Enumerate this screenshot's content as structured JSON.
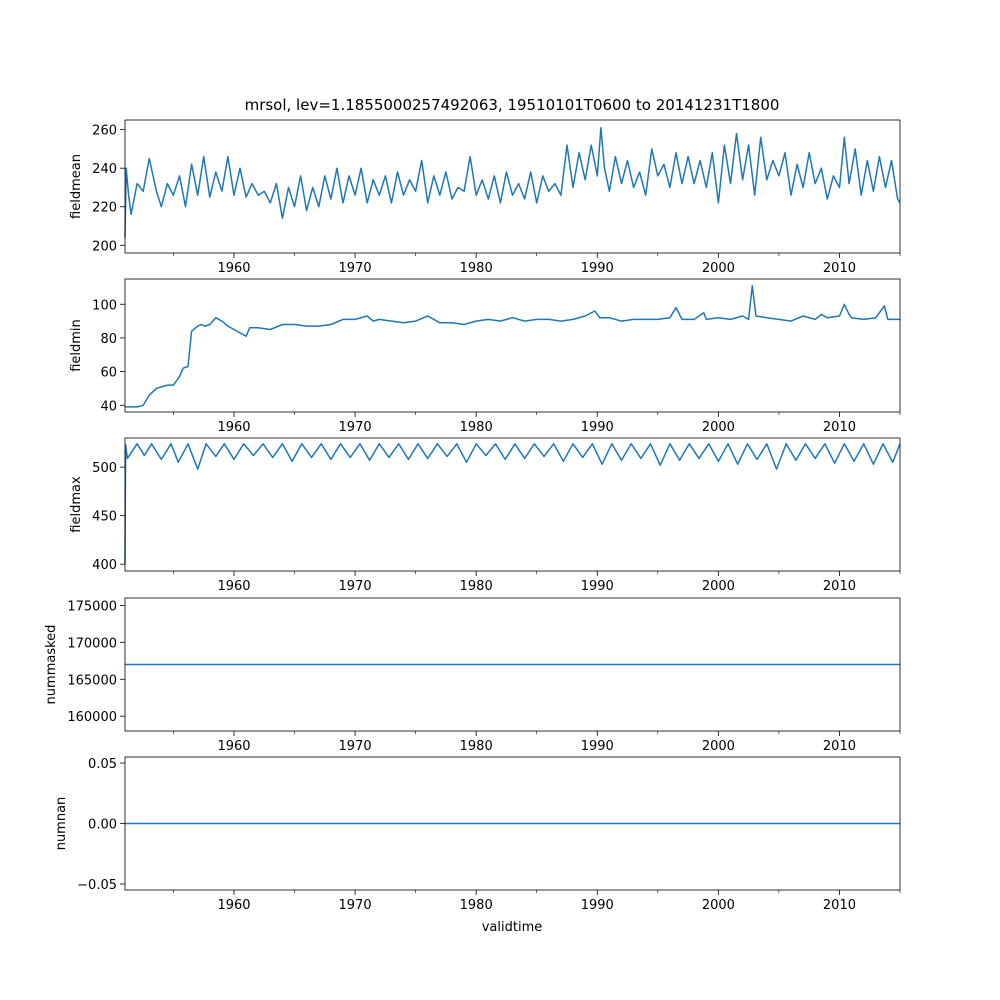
{
  "figure": {
    "title": "mrsol, lev=1.1855000257492063, 19510101T0600 to 20141231T1800",
    "xlabel": "validtime"
  },
  "colors": {
    "line": "#1f77b4",
    "axis": "#000000"
  },
  "chart_data": [
    {
      "type": "line",
      "ylabel": "fieldmean",
      "xlim": [
        1951.0,
        2015.0
      ],
      "ylim": [
        196,
        265
      ],
      "xticks": [
        1960,
        1970,
        1980,
        1990,
        2000,
        2010
      ],
      "yticks": [
        200,
        220,
        240,
        260
      ],
      "grid": false,
      "series": [
        {
          "x": [
            1951.0,
            1951.1,
            1951.3,
            1951.5,
            1952.0,
            1952.5,
            1953.0,
            1953.6,
            1954.0,
            1954.5,
            1955.0,
            1955.5,
            1956.0,
            1956.5,
            1957.0,
            1957.5,
            1958.0,
            1958.5,
            1959.0,
            1959.5,
            1960.0,
            1960.5,
            1961.0,
            1961.5,
            1962.0,
            1962.5,
            1963.0,
            1963.5,
            1964.0,
            1964.5,
            1965.0,
            1965.5,
            1966.0,
            1966.5,
            1967.0,
            1967.5,
            1968.0,
            1968.5,
            1969.0,
            1969.5,
            1970.0,
            1970.5,
            1971.0,
            1971.5,
            1972.0,
            1972.5,
            1973.0,
            1973.5,
            1974.0,
            1974.5,
            1975.0,
            1975.5,
            1976.0,
            1976.5,
            1977.0,
            1977.5,
            1978.0,
            1978.5,
            1979.0,
            1979.5,
            1980.0,
            1980.5,
            1981.0,
            1981.5,
            1982.0,
            1982.5,
            1983.0,
            1983.5,
            1984.0,
            1984.5,
            1985.0,
            1985.5,
            1986.0,
            1986.5,
            1987.0,
            1987.5,
            1988.0,
            1988.5,
            1989.0,
            1989.5,
            1990.0,
            1990.3,
            1990.6,
            1991.0,
            1991.5,
            1992.0,
            1992.5,
            1993.0,
            1993.5,
            1994.0,
            1994.5,
            1995.0,
            1995.5,
            1996.0,
            1996.5,
            1997.0,
            1997.5,
            1998.0,
            1998.5,
            1999.0,
            1999.5,
            2000.0,
            2000.5,
            2001.0,
            2001.5,
            2002.0,
            2002.5,
            2003.0,
            2003.5,
            2004.0,
            2004.5,
            2005.0,
            2005.5,
            2006.0,
            2006.5,
            2007.0,
            2007.5,
            2008.0,
            2008.5,
            2009.0,
            2009.5,
            2010.0,
            2010.4,
            2010.8,
            2011.3,
            2011.8,
            2012.3,
            2012.8,
            2013.3,
            2013.8,
            2014.3,
            2014.8,
            2015.0
          ],
          "y": [
            204,
            240,
            226,
            216,
            232,
            228,
            245,
            228,
            220,
            232,
            226,
            236,
            220,
            242,
            226,
            246,
            225,
            238,
            228,
            246,
            226,
            240,
            225,
            232,
            226,
            228,
            222,
            232,
            214,
            230,
            220,
            236,
            218,
            230,
            220,
            236,
            224,
            240,
            222,
            236,
            226,
            240,
            222,
            234,
            226,
            236,
            222,
            238,
            226,
            234,
            228,
            244,
            222,
            236,
            226,
            238,
            224,
            230,
            228,
            246,
            226,
            234,
            224,
            236,
            222,
            238,
            226,
            232,
            224,
            238,
            222,
            236,
            228,
            232,
            226,
            252,
            230,
            248,
            234,
            252,
            236,
            261,
            240,
            228,
            246,
            232,
            244,
            230,
            238,
            226,
            250,
            236,
            242,
            230,
            248,
            232,
            246,
            232,
            244,
            230,
            248,
            222,
            252,
            232,
            258,
            234,
            252,
            226,
            256,
            234,
            244,
            236,
            248,
            226,
            242,
            230,
            248,
            232,
            240,
            224,
            236,
            230,
            256,
            232,
            250,
            226,
            244,
            228,
            246,
            230,
            244,
            224,
            222
          ]
        }
      ]
    },
    {
      "type": "line",
      "ylabel": "fieldmin",
      "xlim": [
        1951.0,
        2015.0
      ],
      "ylim": [
        36,
        115
      ],
      "xticks": [
        1960,
        1970,
        1980,
        1990,
        2000,
        2010
      ],
      "yticks": [
        40,
        60,
        80,
        100
      ],
      "grid": false,
      "series": [
        {
          "x": [
            1951.0,
            1952.0,
            1952.5,
            1953.0,
            1953.6,
            1954.5,
            1955.0,
            1955.5,
            1955.8,
            1956.2,
            1956.5,
            1957.0,
            1957.3,
            1957.6,
            1958.0,
            1958.5,
            1959.0,
            1959.5,
            1960.0,
            1960.5,
            1961.0,
            1961.3,
            1962.0,
            1963.0,
            1964.0,
            1965.0,
            1966.0,
            1967.0,
            1968.0,
            1969.0,
            1970.0,
            1971.0,
            1971.5,
            1972.0,
            1973.0,
            1974.0,
            1975.0,
            1976.0,
            1977.0,
            1978.0,
            1979.0,
            1980.0,
            1981.0,
            1982.0,
            1983.0,
            1984.0,
            1985.0,
            1986.0,
            1987.0,
            1988.0,
            1989.0,
            1989.8,
            1990.2,
            1991.0,
            1992.0,
            1993.0,
            1994.0,
            1995.0,
            1996.0,
            1996.5,
            1997.0,
            1998.0,
            1998.8,
            1999.0,
            2000.0,
            2001.0,
            2002.0,
            2002.5,
            2002.8,
            2003.1,
            2004.0,
            2005.0,
            2006.0,
            2007.0,
            2008.0,
            2008.5,
            2009.0,
            2010.0,
            2010.4,
            2010.8,
            2011.0,
            2012.0,
            2013.0,
            2013.7,
            2014.0,
            2015.0
          ],
          "y": [
            39,
            39,
            40,
            46,
            50,
            52,
            52,
            57,
            62,
            63,
            84,
            87,
            88,
            87,
            88,
            92,
            90,
            87,
            85,
            83,
            81,
            86,
            86,
            85,
            88,
            88,
            87,
            87,
            88,
            91,
            91,
            93,
            90,
            91,
            90,
            89,
            90,
            93,
            89,
            89,
            88,
            90,
            91,
            90,
            92,
            90,
            91,
            91,
            90,
            91,
            93,
            96,
            92,
            92,
            90,
            91,
            91,
            91,
            92,
            98,
            91,
            91,
            95,
            91,
            92,
            91,
            93,
            91,
            111,
            93,
            92,
            91,
            90,
            93,
            91,
            94,
            92,
            93,
            100,
            94,
            92,
            91,
            92,
            99,
            91,
            91
          ]
        }
      ]
    },
    {
      "type": "line",
      "ylabel": "fieldmax",
      "xlim": [
        1951.0,
        2015.0
      ],
      "ylim": [
        393,
        530
      ],
      "xticks": [
        1960,
        1970,
        1980,
        1990,
        2000,
        2010
      ],
      "yticks": [
        400,
        450,
        500
      ],
      "grid": false,
      "series": [
        {
          "x": [
            1951.0,
            1951.05,
            1951.2,
            1952.0,
            1952.6,
            1953.2,
            1954.0,
            1954.8,
            1955.4,
            1956.2,
            1957.0,
            1957.7,
            1958.5,
            1959.2,
            1960.0,
            1960.8,
            1961.6,
            1962.4,
            1963.2,
            1964.0,
            1964.8,
            1965.6,
            1966.4,
            1967.2,
            1968.0,
            1968.8,
            1969.6,
            1970.4,
            1971.2,
            1972.0,
            1972.8,
            1973.6,
            1974.4,
            1975.2,
            1976.0,
            1976.8,
            1977.6,
            1978.4,
            1979.2,
            1980.0,
            1980.8,
            1981.6,
            1982.4,
            1983.2,
            1984.0,
            1984.8,
            1985.6,
            1986.4,
            1987.2,
            1988.0,
            1988.8,
            1989.6,
            1990.4,
            1991.2,
            1992.0,
            1992.8,
            1993.6,
            1994.4,
            1995.2,
            1996.0,
            1996.8,
            1997.6,
            1998.4,
            1999.2,
            2000.0,
            2000.8,
            2001.6,
            2002.4,
            2003.2,
            2004.0,
            2004.8,
            2005.6,
            2006.4,
            2007.2,
            2008.0,
            2008.8,
            2009.6,
            2010.4,
            2011.2,
            2012.0,
            2012.8,
            2013.6,
            2014.4,
            2015.0
          ],
          "y": [
            400,
            523,
            509,
            524,
            512,
            524,
            508,
            524,
            505,
            524,
            498,
            524,
            511,
            524,
            508,
            524,
            512,
            524,
            510,
            524,
            506,
            524,
            510,
            524,
            508,
            524,
            510,
            524,
            507,
            524,
            510,
            524,
            508,
            524,
            509,
            524,
            511,
            524,
            505,
            524,
            512,
            524,
            508,
            524,
            509,
            524,
            511,
            524,
            506,
            524,
            510,
            524,
            503,
            524,
            507,
            524,
            509,
            524,
            502,
            524,
            507,
            524,
            509,
            524,
            506,
            524,
            503,
            524,
            508,
            524,
            498,
            524,
            507,
            524,
            509,
            524,
            504,
            524,
            506,
            524,
            503,
            524,
            505,
            524
          ]
        }
      ]
    },
    {
      "type": "line",
      "ylabel": "nummasked",
      "xlim": [
        1951.0,
        2015.0
      ],
      "ylim": [
        158000,
        176000
      ],
      "xticks": [
        1960,
        1970,
        1980,
        1990,
        2000,
        2010
      ],
      "yticks": [
        160000,
        165000,
        170000,
        175000
      ],
      "grid": false,
      "series": [
        {
          "x": [
            1951.0,
            2015.0
          ],
          "y": [
            167000,
            167000
          ]
        }
      ]
    },
    {
      "type": "line",
      "ylabel": "numnan",
      "xlim": [
        1951.0,
        2015.0
      ],
      "ylim": [
        -0.055,
        0.055
      ],
      "xticks": [
        1960,
        1970,
        1980,
        1990,
        2000,
        2010
      ],
      "yticks": [
        -0.05,
        0.0,
        0.05
      ],
      "ytick_labels": [
        "−0.05",
        "0.00",
        "0.05"
      ],
      "grid": false,
      "series": [
        {
          "x": [
            1951.0,
            2015.0
          ],
          "y": [
            0,
            0
          ]
        }
      ]
    }
  ]
}
